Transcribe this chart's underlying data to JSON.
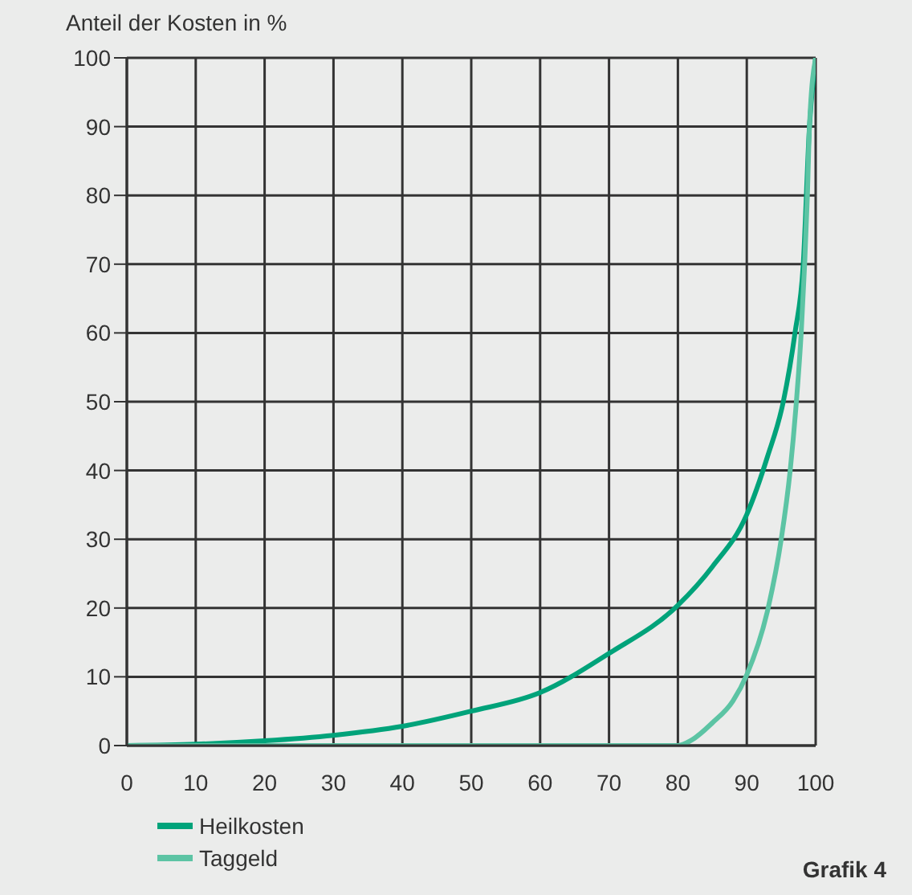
{
  "chart_data": {
    "type": "line",
    "ylabel": "Anteil der Kosten in %",
    "xlim": [
      0,
      100
    ],
    "xticks": [
      0,
      10,
      20,
      30,
      40,
      50,
      60,
      70,
      80,
      90,
      100
    ],
    "ylim": [
      0,
      100
    ],
    "yticks": [
      0,
      10,
      20,
      30,
      40,
      50,
      60,
      70,
      80,
      90,
      100
    ],
    "grid": true,
    "legend": "bottom left",
    "marker": "none",
    "line_style": "solid",
    "annotations": [
      "Grafik 4"
    ],
    "series": [
      {
        "name": "Heilkosten",
        "color": "#00a37a",
        "x": [
          0,
          10,
          20,
          30,
          40,
          50,
          60,
          70,
          80,
          85,
          90,
          93,
          95.3,
          97,
          98.2,
          99.1,
          100
        ],
        "values": [
          0,
          0.2,
          0.7,
          1.5,
          2.8,
          5,
          7.7,
          13.4,
          20.4,
          26,
          33.6,
          42,
          50,
          60,
          70,
          90,
          100
        ]
      },
      {
        "name": "Taggeld",
        "color": "#5cc4a4",
        "x": [
          0,
          10,
          20,
          30,
          40,
          50,
          60,
          70,
          80,
          82,
          85,
          88,
          90,
          93.1,
          95,
          96.3,
          97.2,
          97.9,
          98.4,
          98.8,
          99.1,
          100
        ],
        "values": [
          0,
          0,
          0,
          0,
          0,
          0,
          0,
          0,
          0,
          0.8,
          3.3,
          6.5,
          10.3,
          20,
          30,
          40,
          50,
          60,
          70,
          80,
          90,
          100
        ]
      }
    ]
  }
}
